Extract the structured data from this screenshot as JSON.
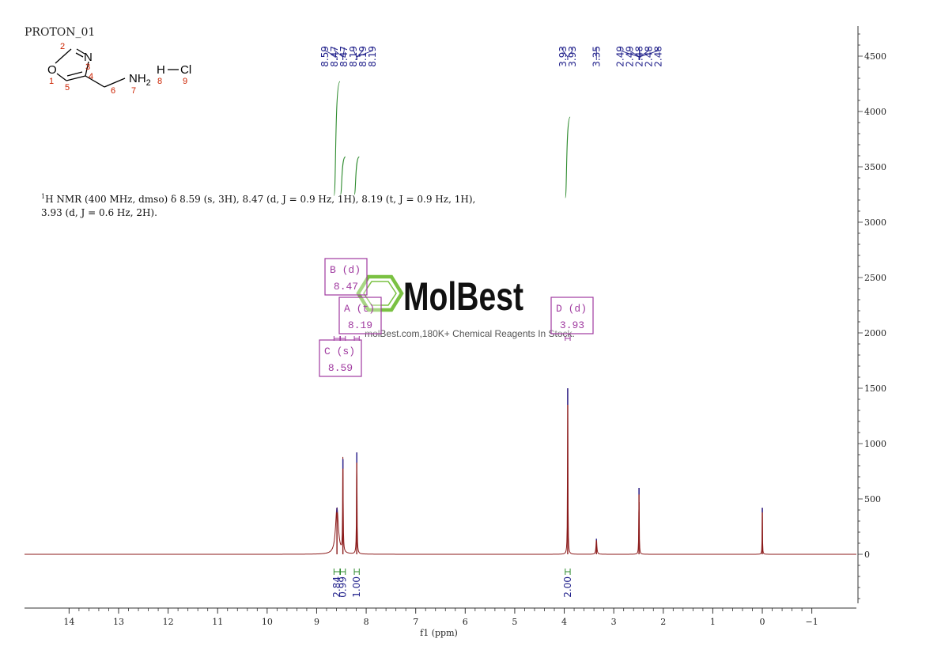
{
  "title": "PROTON_01",
  "structure": {
    "atoms": [
      {
        "id": "O1",
        "symbol": "O",
        "label": "1"
      },
      {
        "id": "C2",
        "symbol": "",
        "label": "2"
      },
      {
        "id": "N3",
        "symbol": "N",
        "label": "3"
      },
      {
        "id": "C4",
        "symbol": "",
        "label": "4"
      },
      {
        "id": "C5",
        "symbol": "",
        "label": "5"
      },
      {
        "id": "C6",
        "symbol": "",
        "label": "6"
      },
      {
        "id": "N7",
        "symbol": "NH",
        "sub": "2",
        "label": "7",
        "h_label": "8"
      },
      {
        "id": "H8",
        "symbol": "H",
        "label": ""
      },
      {
        "id": "Cl9",
        "symbol": "Cl",
        "label": "9"
      }
    ]
  },
  "description": {
    "prefix_sup": "1",
    "line1": "H NMR (400 MHz, dmso) δ 8.59 (s, 3H), 8.47 (d, J = 0.9 Hz, 1H), 8.19 (t, J = 0.9 Hz, 1H),",
    "line2": "3.93 (d, J = 0.6 Hz, 2H)."
  },
  "watermark": {
    "brand": "MolBest",
    "tagline": "molBest.com,180K+ Chemical Reagents In Stock."
  },
  "chart_data": {
    "type": "line",
    "title": "PROTON_01",
    "xlabel": "f1 (ppm)",
    "ylabel": "",
    "xlim": [
      14.9,
      -1.9
    ],
    "ylim": [
      -500,
      4800
    ],
    "x_ticks": [
      14,
      13,
      12,
      11,
      10,
      9,
      8,
      7,
      6,
      5,
      4,
      3,
      2,
      1,
      0,
      -1
    ],
    "x_tick_labels": [
      "14",
      "13",
      "12",
      "11",
      "10",
      "9",
      "8",
      "7",
      "6",
      "5",
      "4",
      "3",
      "2",
      "1",
      "0",
      "−1"
    ],
    "y_ticks": [
      0,
      500,
      1000,
      1500,
      2000,
      2500,
      3000,
      3500,
      4000,
      4500
    ],
    "grid": false,
    "peaks": [
      {
        "ppm": 8.59,
        "height": 420,
        "width": 0.035
      },
      {
        "ppm": 8.47,
        "height": 860,
        "width": 0.006
      },
      {
        "ppm": 8.19,
        "height": 920,
        "width": 0.006
      },
      {
        "ppm": 3.93,
        "height": 1500,
        "width": 0.005
      },
      {
        "ppm": 3.35,
        "height": 140,
        "width": 0.01
      },
      {
        "ppm": 2.49,
        "height": 600,
        "width": 0.005
      },
      {
        "ppm": 0.0,
        "height": 420,
        "width": 0.004
      }
    ],
    "peak_labels": [
      {
        "group": 1,
        "text": "8.59",
        "ppm": 8.59
      },
      {
        "group": 1,
        "text": "8.47",
        "ppm": 8.47
      },
      {
        "group": 1,
        "text": "8.47",
        "ppm": 8.47
      },
      {
        "group": 1,
        "text": "8.19",
        "ppm": 8.19
      },
      {
        "group": 1,
        "text": "8.19",
        "ppm": 8.19
      },
      {
        "group": 1,
        "text": "8.19",
        "ppm": 8.19
      },
      {
        "group": 2,
        "text": "3.93",
        "ppm": 3.93
      },
      {
        "group": 2,
        "text": "3.93",
        "ppm": 3.93
      },
      {
        "group": 3,
        "text": "3.35",
        "ppm": 3.35
      },
      {
        "group": 4,
        "text": "2.49",
        "ppm": 2.49
      },
      {
        "group": 4,
        "text": "2.49",
        "ppm": 2.49
      },
      {
        "group": 4,
        "text": "2.48",
        "ppm": 2.48
      },
      {
        "group": 4,
        "text": "2.48",
        "ppm": 2.48
      },
      {
        "group": 4,
        "text": "2.48",
        "ppm": 2.48
      }
    ],
    "integrals": [
      {
        "from": 8.65,
        "to": 8.53,
        "value": "2.84",
        "curve_start": 3240,
        "curve_end": 4270
      },
      {
        "from": 8.52,
        "to": 8.42,
        "value": "0.99",
        "curve_start": 3250,
        "curve_end": 3590
      },
      {
        "from": 8.24,
        "to": 8.14,
        "value": "1.00",
        "curve_start": 3250,
        "curve_end": 3590
      },
      {
        "from": 3.98,
        "to": 3.88,
        "value": "2.00",
        "curve_start": 3220,
        "curve_end": 3950
      }
    ],
    "multiplet_boxes": [
      {
        "name": "B",
        "mult": "d",
        "shift": "8.47"
      },
      {
        "name": "A",
        "mult": "t",
        "shift": "8.19"
      },
      {
        "name": "C",
        "mult": "s",
        "shift": "8.59"
      },
      {
        "name": "D",
        "mult": "d",
        "shift": "3.93"
      }
    ],
    "colors": {
      "spectrum": "#8b1a1a",
      "peak_top": "#2b2b9a",
      "integral": "#2e8b2e",
      "label": "#1f1f8a",
      "box": "#a03aa0",
      "watermark_green": "#7ac142",
      "atom_label": "#cc2200",
      "axis": "#333333"
    }
  }
}
